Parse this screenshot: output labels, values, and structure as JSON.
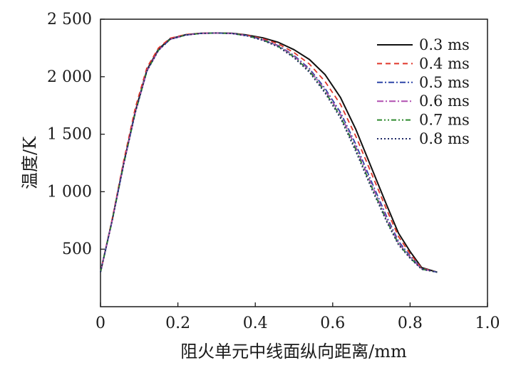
{
  "chart_data": {
    "type": "line",
    "xlabel": "阻火单元中线面纵向距离/mm",
    "ylabel": "温度/K",
    "xlim": [
      0,
      1.0
    ],
    "ylim": [
      0,
      2500
    ],
    "x_ticks": [
      0,
      0.2,
      0.4,
      0.6,
      0.8,
      1.0
    ],
    "x_tick_labels": [
      "0",
      "0.2",
      "0.4",
      "0.6",
      "0.8",
      "1.0"
    ],
    "y_ticks": [
      500,
      1000,
      1500,
      2000,
      2500
    ],
    "y_tick_labels": [
      "500",
      "1 000",
      "1 500",
      "2 000",
      "2 500"
    ],
    "grid": false,
    "legend_position": "top-right",
    "series": [
      {
        "name": "0.3 ms",
        "color": "#111111",
        "dash": "solid",
        "x": [
          0.0,
          0.03,
          0.06,
          0.09,
          0.12,
          0.15,
          0.18,
          0.22,
          0.26,
          0.3,
          0.34,
          0.38,
          0.42,
          0.46,
          0.5,
          0.54,
          0.58,
          0.62,
          0.66,
          0.7,
          0.74,
          0.77,
          0.8,
          0.83,
          0.87
        ],
        "y": [
          300,
          750,
          1250,
          1700,
          2060,
          2240,
          2330,
          2365,
          2378,
          2380,
          2378,
          2362,
          2338,
          2298,
          2235,
          2150,
          2020,
          1820,
          1540,
          1210,
          880,
          640,
          480,
          340,
          300
        ]
      },
      {
        "name": "0.4 ms",
        "color": "#e0362a",
        "dash": "7,5",
        "x": [
          0.0,
          0.03,
          0.06,
          0.09,
          0.12,
          0.15,
          0.18,
          0.22,
          0.26,
          0.3,
          0.34,
          0.38,
          0.42,
          0.46,
          0.5,
          0.54,
          0.58,
          0.62,
          0.66,
          0.7,
          0.74,
          0.77,
          0.8,
          0.83,
          0.87
        ],
        "y": [
          300,
          760,
          1270,
          1730,
          2080,
          2250,
          2335,
          2367,
          2379,
          2380,
          2377,
          2360,
          2330,
          2285,
          2210,
          2110,
          1960,
          1760,
          1480,
          1160,
          840,
          610,
          460,
          335,
          300
        ]
      },
      {
        "name": "0.5 ms",
        "color": "#2e47a8",
        "dash": "8,3,2,3",
        "x": [
          0.0,
          0.03,
          0.06,
          0.09,
          0.12,
          0.15,
          0.18,
          0.22,
          0.26,
          0.3,
          0.34,
          0.38,
          0.42,
          0.46,
          0.5,
          0.54,
          0.58,
          0.62,
          0.66,
          0.7,
          0.74,
          0.77,
          0.8,
          0.83,
          0.87
        ],
        "y": [
          300,
          745,
          1240,
          1690,
          2050,
          2230,
          2325,
          2362,
          2377,
          2380,
          2376,
          2357,
          2322,
          2270,
          2185,
          2070,
          1900,
          1690,
          1410,
          1090,
          780,
          570,
          440,
          330,
          300
        ]
      },
      {
        "name": "0.6 ms",
        "color": "#b04fb0",
        "dash": "9,3,2,3",
        "x": [
          0.0,
          0.03,
          0.06,
          0.09,
          0.12,
          0.15,
          0.18,
          0.22,
          0.26,
          0.3,
          0.34,
          0.38,
          0.42,
          0.46,
          0.5,
          0.54,
          0.58,
          0.62,
          0.66,
          0.7,
          0.74,
          0.77,
          0.8,
          0.83,
          0.87
        ],
        "y": [
          300,
          745,
          1240,
          1690,
          2050,
          2230,
          2325,
          2362,
          2377,
          2380,
          2376,
          2356,
          2320,
          2266,
          2178,
          2058,
          1885,
          1670,
          1385,
          1065,
          760,
          555,
          430,
          328,
          300
        ]
      },
      {
        "name": "0.7 ms",
        "color": "#2e8a2e",
        "dash": "7,3,2,3,2,3",
        "x": [
          0.0,
          0.03,
          0.06,
          0.09,
          0.12,
          0.15,
          0.18,
          0.22,
          0.26,
          0.3,
          0.34,
          0.38,
          0.42,
          0.46,
          0.5,
          0.54,
          0.58,
          0.62,
          0.66,
          0.7,
          0.74,
          0.77,
          0.8,
          0.83,
          0.87
        ],
        "y": [
          300,
          745,
          1240,
          1690,
          2050,
          2230,
          2325,
          2362,
          2377,
          2380,
          2376,
          2355,
          2318,
          2262,
          2172,
          2048,
          1872,
          1655,
          1365,
          1045,
          745,
          545,
          425,
          326,
          300
        ]
      },
      {
        "name": "0.8 ms",
        "color": "#1f2a66",
        "dash": "2,3",
        "x": [
          0.0,
          0.03,
          0.06,
          0.09,
          0.12,
          0.15,
          0.18,
          0.22,
          0.26,
          0.3,
          0.34,
          0.38,
          0.42,
          0.46,
          0.5,
          0.54,
          0.58,
          0.62,
          0.66,
          0.7,
          0.74,
          0.77,
          0.8,
          0.83,
          0.87
        ],
        "y": [
          300,
          745,
          1240,
          1690,
          2050,
          2230,
          2325,
          2362,
          2377,
          2380,
          2375,
          2354,
          2315,
          2258,
          2165,
          2038,
          1860,
          1640,
          1348,
          1030,
          735,
          538,
          420,
          325,
          300
        ]
      }
    ]
  }
}
